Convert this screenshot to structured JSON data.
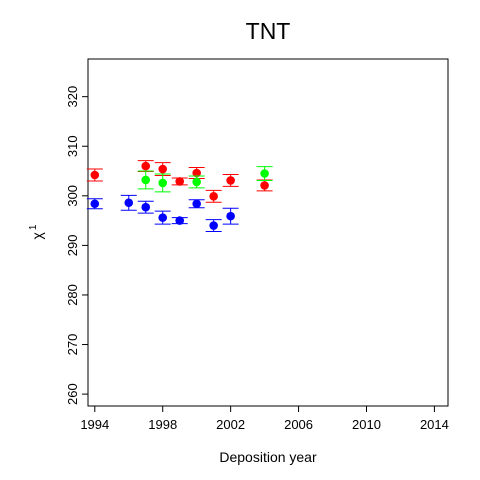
{
  "chart_data": {
    "type": "scatter",
    "title": "TNT",
    "xlabel": "Deposition year",
    "ylabel_base": "χ",
    "ylabel_sup": "1",
    "xlim": [
      1993.6,
      2014.8
    ],
    "ylim": [
      257.6,
      327.6
    ],
    "xticks": [
      "1994",
      "1998",
      "2002",
      "2006",
      "2010",
      "2014"
    ],
    "yticks": [
      "260",
      "270",
      "280",
      "290",
      "300",
      "310",
      "320"
    ],
    "grid": false,
    "legend": "none",
    "series": [
      {
        "color": "#0000ff",
        "points": [
          {
            "x": 1994,
            "y": 298.4,
            "lo": 297.4,
            "hi": 299.4
          },
          {
            "x": 1996,
            "y": 298.6,
            "lo": 297.1,
            "hi": 300.1
          },
          {
            "x": 1997,
            "y": 297.7,
            "lo": 296.5,
            "hi": 298.9
          },
          {
            "x": 1998,
            "y": 295.6,
            "lo": 294.3,
            "hi": 296.9
          },
          {
            "x": 1999,
            "y": 295.0,
            "lo": 294.4,
            "hi": 295.6
          },
          {
            "x": 2000,
            "y": 298.4,
            "lo": 297.6,
            "hi": 299.2
          },
          {
            "x": 2001,
            "y": 294.0,
            "lo": 292.8,
            "hi": 295.2
          },
          {
            "x": 2002,
            "y": 295.9,
            "lo": 294.3,
            "hi": 297.5
          }
        ]
      },
      {
        "color": "#ff0000",
        "points": [
          {
            "x": 1994,
            "y": 304.2,
            "lo": 303.0,
            "hi": 305.4
          },
          {
            "x": 1997,
            "y": 306.0,
            "lo": 304.9,
            "hi": 307.1
          },
          {
            "x": 1998,
            "y": 305.4,
            "lo": 304.1,
            "hi": 306.7
          },
          {
            "x": 1999,
            "y": 302.9,
            "lo": 302.2,
            "hi": 303.6
          },
          {
            "x": 2000,
            "y": 304.6,
            "lo": 303.5,
            "hi": 305.7
          },
          {
            "x": 2001,
            "y": 299.9,
            "lo": 298.7,
            "hi": 301.1
          },
          {
            "x": 2002,
            "y": 303.1,
            "lo": 301.9,
            "hi": 304.3
          },
          {
            "x": 2004,
            "y": 302.1,
            "lo": 301.0,
            "hi": 303.2
          }
        ]
      },
      {
        "color": "#00ff00",
        "points": [
          {
            "x": 1997,
            "y": 303.2,
            "lo": 301.4,
            "hi": 305.0
          },
          {
            "x": 1998,
            "y": 302.6,
            "lo": 300.8,
            "hi": 304.4
          },
          {
            "x": 2000,
            "y": 302.8,
            "lo": 301.6,
            "hi": 304.0
          },
          {
            "x": 2004,
            "y": 304.5,
            "lo": 303.1,
            "hi": 305.9
          }
        ]
      }
    ]
  }
}
